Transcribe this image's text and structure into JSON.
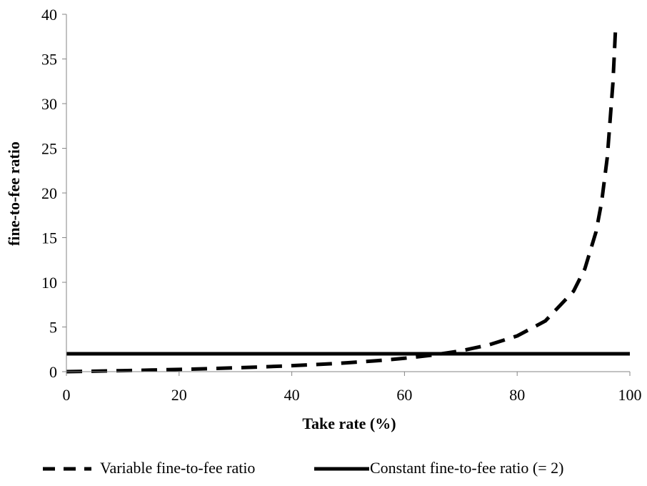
{
  "chart_data": {
    "type": "line",
    "xlabel": "Take rate (%)",
    "ylabel": "fine-to-fee ratio",
    "xlim": [
      0,
      100
    ],
    "ylim": [
      0,
      40
    ],
    "x_ticks": [
      0,
      20,
      40,
      60,
      80,
      100
    ],
    "y_ticks": [
      0,
      5,
      10,
      15,
      20,
      25,
      30,
      35,
      40
    ],
    "grid": false,
    "legend_position": "bottom",
    "series": [
      {
        "name": "Variable fine-to-fee ratio",
        "style": "dashed",
        "color": "#000000",
        "x": [
          0,
          5,
          10,
          15,
          20,
          25,
          30,
          35,
          40,
          45,
          50,
          55,
          60,
          65,
          70,
          75,
          80,
          85,
          90,
          92,
          94,
          95,
          96,
          97,
          97.5
        ],
        "y": [
          0,
          0.05,
          0.11,
          0.18,
          0.25,
          0.33,
          0.43,
          0.54,
          0.67,
          0.82,
          1.0,
          1.22,
          1.5,
          1.86,
          2.33,
          3.0,
          4.0,
          5.67,
          9.0,
          11.5,
          15.67,
          19.0,
          24.0,
          32.33,
          39.0
        ]
      },
      {
        "name": "Constant fine-to-fee ratio (= 2)",
        "style": "solid",
        "color": "#000000",
        "x": [
          0,
          100
        ],
        "y": [
          2,
          2
        ]
      }
    ]
  }
}
